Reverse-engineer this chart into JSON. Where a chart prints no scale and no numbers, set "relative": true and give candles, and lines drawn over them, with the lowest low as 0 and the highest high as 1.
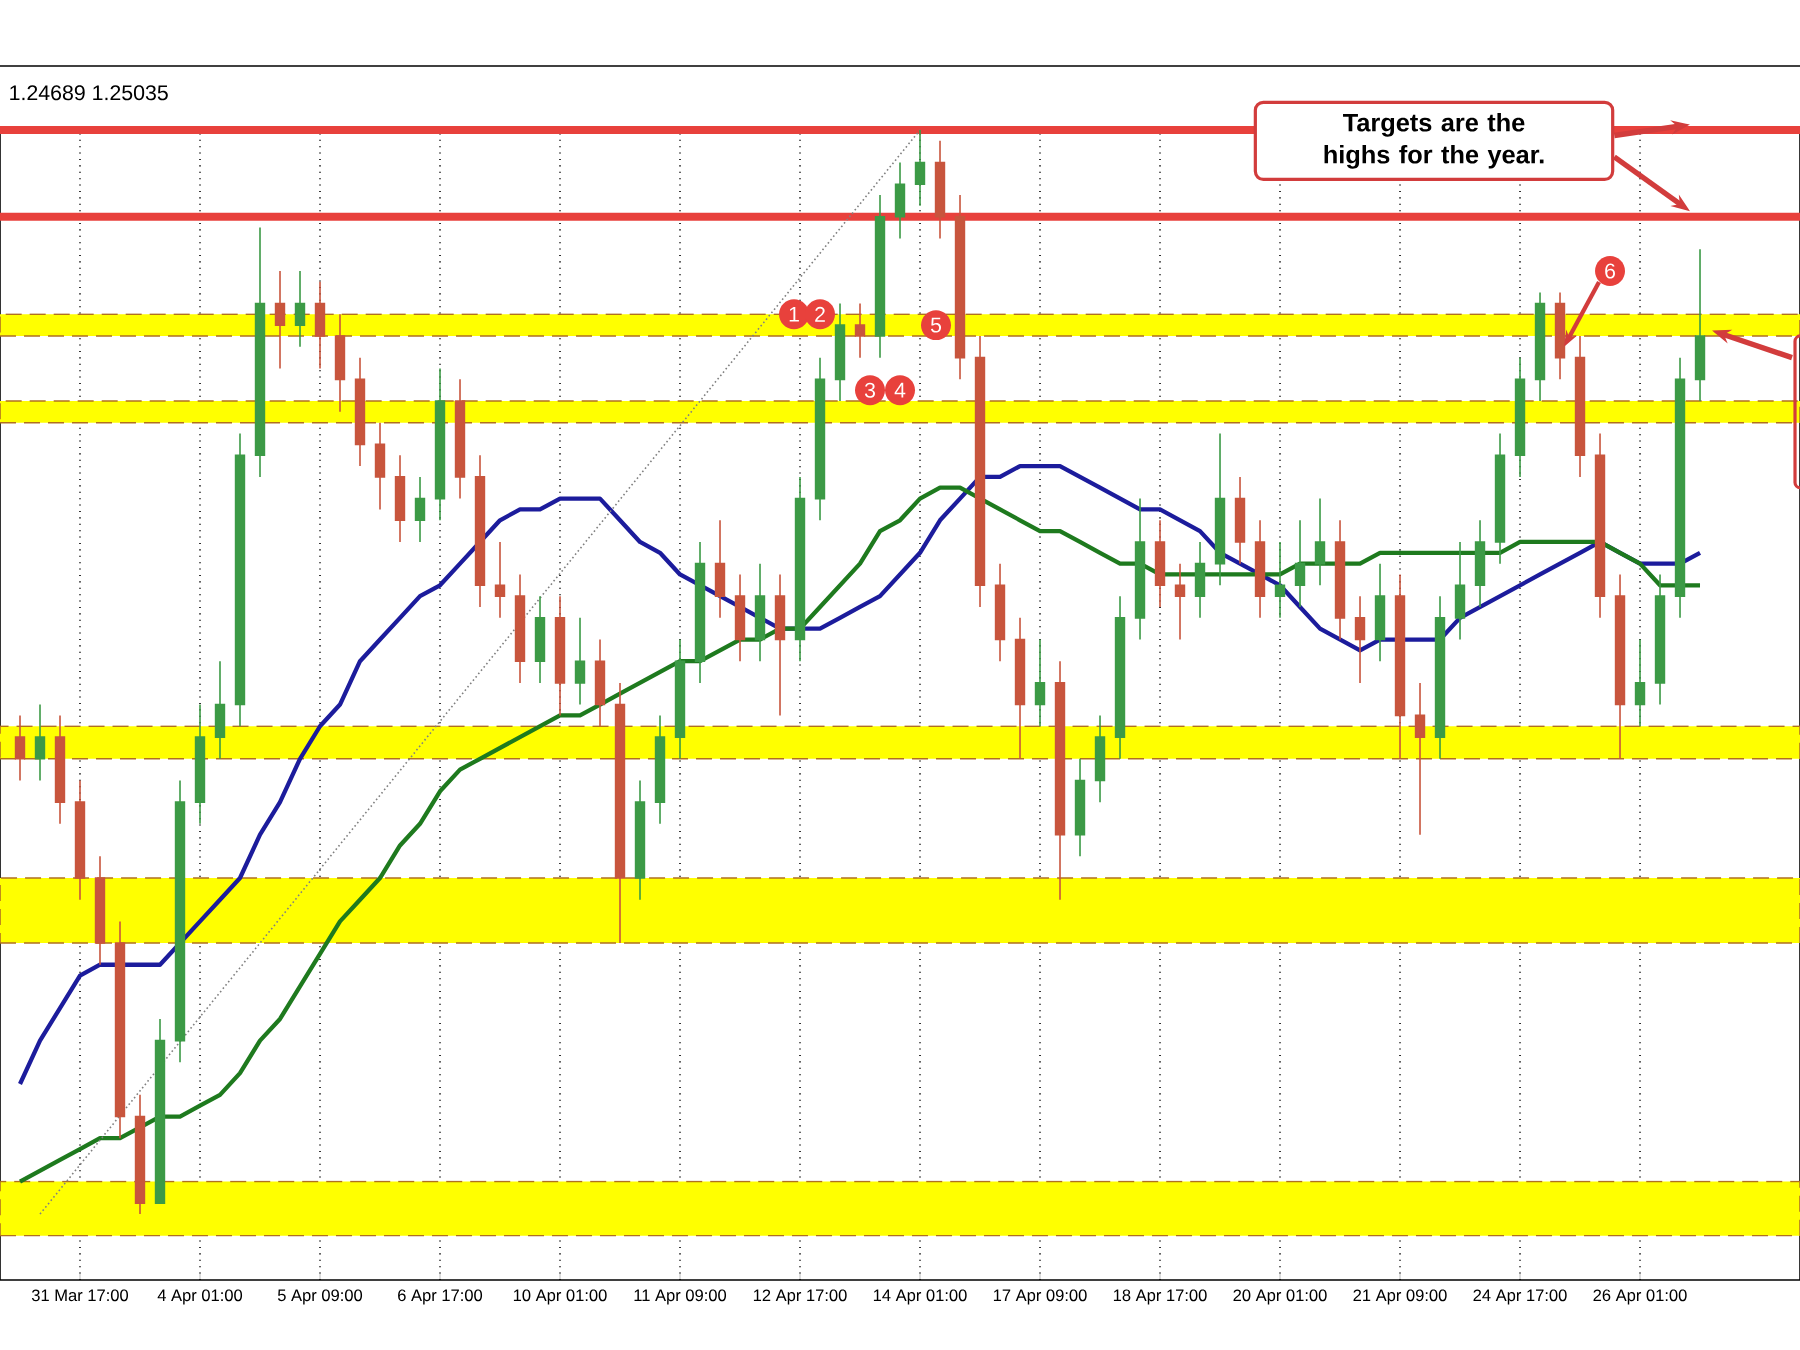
{
  "chart_data": {
    "type": "candlestick",
    "relative": true,
    "grid": "x",
    "categories": [
      null,
      null,
      null,
      "31 Mar 17:00",
      null,
      null,
      null,
      null,
      null,
      "4 Apr 01:00",
      null,
      null,
      null,
      null,
      null,
      "5 Apr 09:00",
      null,
      null,
      null,
      null,
      null,
      "6 Apr 17:00",
      null,
      null,
      null,
      null,
      null,
      "10 Apr 01:00",
      null,
      null,
      null,
      null,
      null,
      "11 Apr 09:00",
      null,
      null,
      null,
      null,
      null,
      "12 Apr 17:00",
      null,
      null,
      null,
      null,
      null,
      "14 Apr 01:00",
      null,
      null,
      null,
      null,
      null,
      "17 Apr 09:00",
      null,
      null,
      null,
      null,
      null,
      "18 Apr 17:00",
      null,
      null,
      null,
      null,
      null,
      "20 Apr 01:00",
      null,
      null,
      null,
      null,
      null,
      "21 Apr 09:00",
      null,
      null,
      null,
      null,
      null,
      "24 Apr 17:00",
      null,
      null,
      null,
      null,
      null,
      "26 Apr 01:00",
      null,
      null,
      null
    ],
    "ohlc": [
      [
        0.44,
        0.46,
        0.4,
        0.42
      ],
      [
        0.42,
        0.47,
        0.4,
        0.44
      ],
      [
        0.44,
        0.46,
        0.36,
        0.38
      ],
      [
        0.38,
        0.4,
        0.29,
        0.31
      ],
      [
        0.31,
        0.33,
        0.23,
        0.25
      ],
      [
        0.25,
        0.27,
        0.07,
        0.09
      ],
      [
        0.09,
        0.11,
        0,
        0.01
      ],
      [
        0.01,
        0.18,
        0.01,
        0.16
      ],
      [
        0.16,
        0.4,
        0.14,
        0.38
      ],
      [
        0.38,
        0.47,
        0.36,
        0.44
      ],
      [
        0.44,
        0.51,
        0.42,
        0.47
      ],
      [
        0.47,
        0.72,
        0.45,
        0.7
      ],
      [
        0.7,
        0.91,
        0.68,
        0.84
      ],
      [
        0.84,
        0.87,
        0.78,
        0.82
      ],
      [
        0.82,
        0.87,
        0.8,
        0.84
      ],
      [
        0.84,
        0.86,
        0.78,
        0.81
      ],
      [
        0.81,
        0.83,
        0.74,
        0.77
      ],
      [
        0.77,
        0.79,
        0.69,
        0.71
      ],
      [
        0.71,
        0.73,
        0.65,
        0.68
      ],
      [
        0.68,
        0.7,
        0.62,
        0.64
      ],
      [
        0.64,
        0.68,
        0.62,
        0.66
      ],
      [
        0.66,
        0.78,
        0.64,
        0.75
      ],
      [
        0.75,
        0.77,
        0.66,
        0.68
      ],
      [
        0.68,
        0.7,
        0.56,
        0.58
      ],
      [
        0.58,
        0.62,
        0.55,
        0.57
      ],
      [
        0.57,
        0.59,
        0.49,
        0.51
      ],
      [
        0.51,
        0.57,
        0.49,
        0.55
      ],
      [
        0.55,
        0.57,
        0.46,
        0.49
      ],
      [
        0.49,
        0.55,
        0.47,
        0.51
      ],
      [
        0.51,
        0.53,
        0.45,
        0.47
      ],
      [
        0.47,
        0.49,
        0.25,
        0.31
      ],
      [
        0.31,
        0.4,
        0.29,
        0.38
      ],
      [
        0.38,
        0.46,
        0.36,
        0.44
      ],
      [
        0.44,
        0.53,
        0.42,
        0.51
      ],
      [
        0.51,
        0.62,
        0.49,
        0.6
      ],
      [
        0.6,
        0.64,
        0.55,
        0.57
      ],
      [
        0.57,
        0.59,
        0.51,
        0.53
      ],
      [
        0.53,
        0.6,
        0.51,
        0.57
      ],
      [
        0.57,
        0.59,
        0.46,
        0.53
      ],
      [
        0.53,
        0.68,
        0.51,
        0.66
      ],
      [
        0.66,
        0.79,
        0.64,
        0.77
      ],
      [
        0.77,
        0.84,
        0.75,
        0.82
      ],
      [
        0.82,
        0.84,
        0.79,
        0.81
      ],
      [
        0.81,
        0.94,
        0.79,
        0.92
      ],
      [
        0.92,
        0.97,
        0.9,
        0.95
      ],
      [
        0.95,
        1,
        0.93,
        0.97
      ],
      [
        0.97,
        0.99,
        0.9,
        0.92
      ],
      [
        0.92,
        0.94,
        0.77,
        0.79
      ],
      [
        0.79,
        0.81,
        0.56,
        0.58
      ],
      [
        0.58,
        0.6,
        0.51,
        0.53
      ],
      [
        0.53,
        0.55,
        0.42,
        0.47
      ],
      [
        0.47,
        0.53,
        0.45,
        0.49
      ],
      [
        0.49,
        0.51,
        0.29,
        0.35
      ],
      [
        0.35,
        0.42,
        0.33,
        0.4
      ],
      [
        0.4,
        0.46,
        0.38,
        0.44
      ],
      [
        0.44,
        0.57,
        0.42,
        0.55
      ],
      [
        0.55,
        0.66,
        0.53,
        0.62
      ],
      [
        0.62,
        0.64,
        0.56,
        0.58
      ],
      [
        0.58,
        0.6,
        0.53,
        0.57
      ],
      [
        0.57,
        0.62,
        0.55,
        0.6
      ],
      [
        0.6,
        0.72,
        0.58,
        0.66
      ],
      [
        0.66,
        0.68,
        0.6,
        0.62
      ],
      [
        0.62,
        0.64,
        0.55,
        0.57
      ],
      [
        0.57,
        0.62,
        0.55,
        0.58
      ],
      [
        0.58,
        0.64,
        0.56,
        0.6
      ],
      [
        0.6,
        0.66,
        0.58,
        0.62
      ],
      [
        0.62,
        0.64,
        0.53,
        0.55
      ],
      [
        0.55,
        0.57,
        0.49,
        0.53
      ],
      [
        0.53,
        0.6,
        0.51,
        0.57
      ],
      [
        0.57,
        0.59,
        0.42,
        0.46
      ],
      [
        0.46,
        0.49,
        0.35,
        0.44
      ],
      [
        0.44,
        0.57,
        0.42,
        0.55
      ],
      [
        0.55,
        0.62,
        0.53,
        0.58
      ],
      [
        0.58,
        0.64,
        0.56,
        0.62
      ],
      [
        0.62,
        0.72,
        0.6,
        0.7
      ],
      [
        0.7,
        0.79,
        0.68,
        0.77
      ],
      [
        0.77,
        0.85,
        0.75,
        0.84
      ],
      [
        0.84,
        0.85,
        0.77,
        0.79
      ],
      [
        0.79,
        0.81,
        0.68,
        0.7
      ],
      [
        0.7,
        0.72,
        0.55,
        0.57
      ],
      [
        0.57,
        0.59,
        0.42,
        0.47
      ],
      [
        0.47,
        0.53,
        0.45,
        0.49
      ],
      [
        0.49,
        0.59,
        0.47,
        0.57
      ],
      [
        0.57,
        0.79,
        0.55,
        0.77
      ],
      [
        0.77,
        0.89,
        0.75,
        0.81
      ]
    ],
    "colors": [
      "#c8553d",
      "#3c9a46",
      "#c8553d",
      "#c8553d",
      "#c8553d",
      "#c8553d",
      "#c8553d",
      "#3c9a46",
      "#3c9a46",
      "#3c9a46",
      "#3c9a46",
      "#3c9a46",
      "#3c9a46",
      "#c8553d",
      "#3c9a46",
      "#c8553d",
      "#c8553d",
      "#c8553d",
      "#c8553d",
      "#c8553d",
      "#3c9a46",
      "#3c9a46",
      "#c8553d",
      "#c8553d",
      "#c8553d",
      "#c8553d",
      "#3c9a46",
      "#c8553d",
      "#3c9a46",
      "#c8553d",
      "#c8553d",
      "#3c9a46",
      "#3c9a46",
      "#3c9a46",
      "#3c9a46",
      "#c8553d",
      "#c8553d",
      "#3c9a46",
      "#c8553d",
      "#3c9a46",
      "#3c9a46",
      "#3c9a46",
      "#c8553d",
      "#3c9a46",
      "#3c9a46",
      "#3c9a46",
      "#c8553d",
      "#c8553d",
      "#c8553d",
      "#c8553d",
      "#c8553d",
      "#3c9a46",
      "#c8553d",
      "#3c9a46",
      "#3c9a46",
      "#3c9a46",
      "#3c9a46",
      "#c8553d",
      "#c8553d",
      "#3c9a46",
      "#3c9a46",
      "#c8553d",
      "#c8553d",
      "#3c9a46",
      "#3c9a46",
      "#3c9a46",
      "#c8553d",
      "#c8553d",
      "#3c9a46",
      "#c8553d",
      "#c8553d",
      "#3c9a46",
      "#3c9a46",
      "#3c9a46",
      "#3c9a46",
      "#3c9a46",
      "#3c9a46",
      "#c8553d",
      "#c8553d",
      "#c8553d",
      "#c8553d",
      "#3c9a46",
      "#3c9a46",
      "#3c9a46",
      "#3c9a46"
    ],
    "series": [
      {
        "type": "line",
        "color": "#1c1c9c",
        "values": [
          0.12,
          0.16,
          0.19,
          0.22,
          0.23,
          0.23,
          0.23,
          0.23,
          0.25,
          0.27,
          0.29,
          0.31,
          0.35,
          0.38,
          0.42,
          0.45,
          0.47,
          0.51,
          0.53,
          0.55,
          0.57,
          0.58,
          0.6,
          0.62,
          0.64,
          0.65,
          0.65,
          0.66,
          0.66,
          0.66,
          0.64,
          0.62,
          0.61,
          0.59,
          0.58,
          0.57,
          0.56,
          0.55,
          0.54,
          0.54,
          0.54,
          0.55,
          0.56,
          0.57,
          0.59,
          0.61,
          0.64,
          0.66,
          0.68,
          0.68,
          0.69,
          0.69,
          0.69,
          0.68,
          0.67,
          0.66,
          0.65,
          0.65,
          0.64,
          0.63,
          0.61,
          0.6,
          0.59,
          0.58,
          0.56,
          0.54,
          0.53,
          0.52,
          0.53,
          0.53,
          0.53,
          0.53,
          0.55,
          0.56,
          0.57,
          0.58,
          0.59,
          0.6,
          0.61,
          0.62,
          0.61,
          0.6,
          0.6,
          0.6,
          0.61
        ]
      },
      {
        "type": "line",
        "color": "#1e7a1e",
        "values": [
          0.03,
          0.04,
          0.05,
          0.06,
          0.07,
          0.07,
          0.08,
          0.09,
          0.09,
          0.1,
          0.11,
          0.13,
          0.16,
          0.18,
          0.21,
          0.24,
          0.27,
          0.29,
          0.31,
          0.34,
          0.36,
          0.39,
          0.41,
          0.42,
          0.43,
          0.44,
          0.45,
          0.46,
          0.46,
          0.47,
          0.48,
          0.49,
          0.5,
          0.51,
          0.51,
          0.52,
          0.53,
          0.53,
          0.54,
          0.54,
          0.56,
          0.58,
          0.6,
          0.63,
          0.64,
          0.66,
          0.67,
          0.67,
          0.66,
          0.65,
          0.64,
          0.63,
          0.63,
          0.62,
          0.61,
          0.6,
          0.6,
          0.59,
          0.59,
          0.59,
          0.59,
          0.59,
          0.59,
          0.59,
          0.6,
          0.6,
          0.6,
          0.6,
          0.61,
          0.61,
          0.61,
          0.61,
          0.61,
          0.61,
          0.61,
          0.62,
          0.62,
          0.62,
          0.62,
          0.62,
          0.61,
          0.6,
          0.58,
          0.58,
          0.58
        ]
      },
      {
        "type": "line",
        "color": "#808080",
        "line_style": "dotted",
        "values": [
          null,
          0,
          null,
          null,
          null,
          null,
          null,
          null,
          null,
          null,
          null,
          null,
          null,
          null,
          null,
          null,
          null,
          null,
          null,
          null,
          null,
          null,
          null,
          null,
          null,
          null,
          null,
          null,
          null,
          null,
          null,
          null,
          null,
          null,
          null,
          null,
          null,
          null,
          null,
          null,
          null,
          null,
          null,
          null,
          null,
          1,
          null,
          null,
          null,
          null,
          null,
          null,
          null,
          null,
          null,
          null,
          null,
          null,
          null,
          null,
          null,
          null,
          null,
          null,
          null,
          null,
          null,
          null,
          null,
          null,
          null,
          null,
          null,
          null,
          null,
          null,
          null,
          null,
          null,
          null,
          null,
          null,
          null,
          null,
          null
        ]
      }
    ],
    "ref_lines": [
      {
        "axis": "y",
        "value": 1,
        "color": "#e8413c"
      },
      {
        "axis": "y",
        "value": 0.92,
        "color": "#e8413c"
      }
    ],
    "bands": [
      {
        "axis": "y",
        "from": 0.81,
        "to": 0.83,
        "color": "#ffff00"
      },
      {
        "axis": "y",
        "from": 0.73,
        "to": 0.75,
        "color": "#ffff00"
      },
      {
        "axis": "y",
        "from": 0.42,
        "to": 0.45,
        "color": "#ffff00"
      },
      {
        "axis": "y",
        "from": 0.25,
        "to": 0.31,
        "color": "#ffff00"
      },
      {
        "axis": "y",
        "from": -0.02,
        "to": 0.03,
        "color": "#ffff00"
      }
    ],
    "annotations": [
      "1.24689 1.25035",
      "Targets are the highs for the year.",
      "1",
      "2",
      "3",
      "4",
      "5",
      "6"
    ]
  }
}
